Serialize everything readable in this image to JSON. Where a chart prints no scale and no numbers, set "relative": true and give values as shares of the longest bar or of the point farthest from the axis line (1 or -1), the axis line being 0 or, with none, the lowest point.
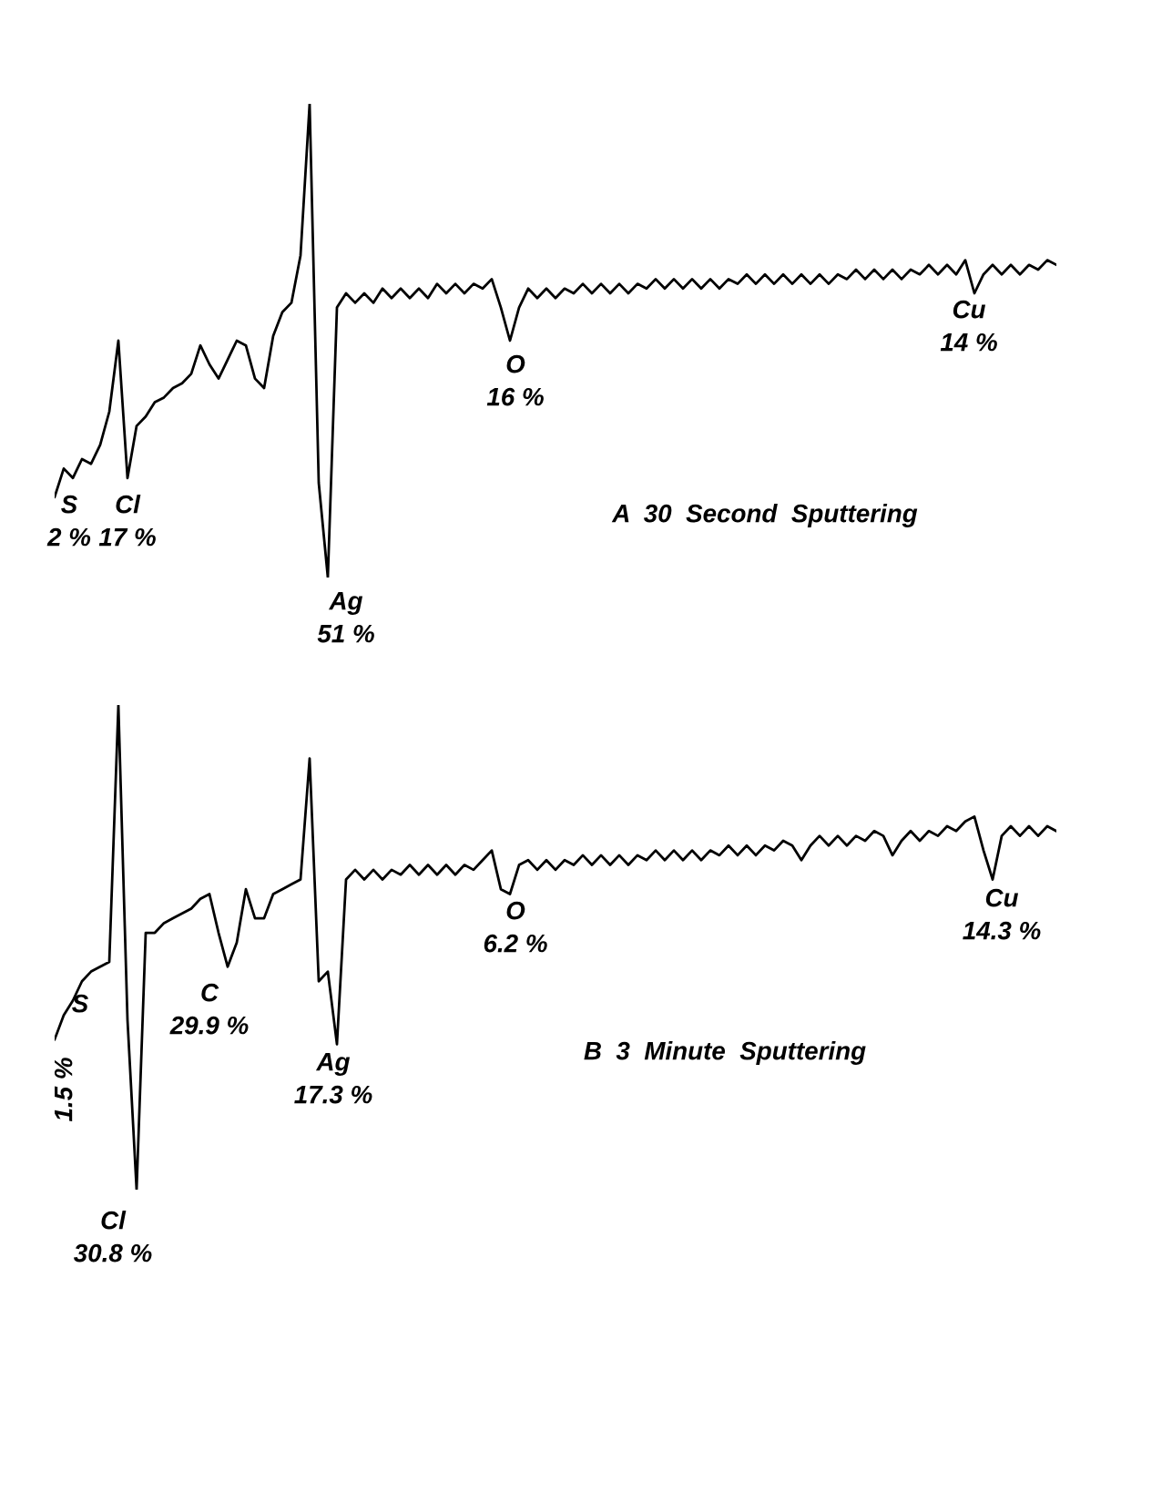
{
  "chart_data": [
    {
      "type": "line",
      "relative": true,
      "categories": [
        null,
        null,
        null,
        null,
        null,
        null,
        null,
        null,
        null,
        null,
        null,
        null,
        null,
        null,
        null,
        null,
        null,
        null,
        null,
        null,
        null,
        null,
        null,
        null,
        null,
        null,
        null,
        null,
        null,
        null,
        null,
        null,
        null,
        null,
        null,
        null,
        null,
        null,
        null,
        null,
        null,
        null,
        null,
        null,
        null,
        null,
        null,
        null,
        null,
        null,
        null,
        null,
        null,
        null,
        null,
        null,
        null,
        null,
        null,
        null,
        null,
        null,
        null,
        null,
        null,
        null,
        null,
        null,
        null,
        null,
        null,
        null,
        null,
        null,
        null,
        null,
        null,
        null,
        null,
        null,
        null,
        null,
        null,
        null,
        null,
        null,
        null,
        null,
        null,
        null,
        null,
        null,
        null,
        null,
        null,
        null,
        null,
        null,
        null,
        null,
        null,
        null,
        null,
        null,
        null,
        null,
        null,
        null,
        null,
        null,
        null
      ],
      "series": [
        {
          "color": "#000000",
          "values": [
            0.17,
            0.23,
            0.21,
            0.25,
            0.24,
            0.28,
            0.35,
            0.5,
            0.21,
            0.32,
            0.34,
            0.37,
            0.38,
            0.4,
            0.41,
            0.43,
            0.49,
            0.45,
            0.42,
            0.46,
            0.5,
            0.49,
            0.42,
            0.4,
            0.51,
            0.56,
            0.58,
            0.68,
            1.0,
            0.2,
            0.0,
            0.57,
            0.6,
            0.58,
            0.6,
            0.58,
            0.61,
            0.59,
            0.61,
            0.59,
            0.61,
            0.59,
            0.62,
            0.6,
            0.62,
            0.6,
            0.62,
            0.61,
            0.63,
            0.57,
            0.5,
            0.57,
            0.61,
            0.59,
            0.61,
            0.59,
            0.61,
            0.6,
            0.62,
            0.6,
            0.62,
            0.6,
            0.62,
            0.6,
            0.62,
            0.61,
            0.63,
            0.61,
            0.63,
            0.61,
            0.63,
            0.61,
            0.63,
            0.61,
            0.63,
            0.62,
            0.64,
            0.62,
            0.64,
            0.62,
            0.64,
            0.62,
            0.64,
            0.62,
            0.64,
            0.62,
            0.64,
            0.63,
            0.65,
            0.63,
            0.65,
            0.63,
            0.65,
            0.63,
            0.65,
            0.64,
            0.66,
            0.64,
            0.66,
            0.64,
            0.67,
            0.6,
            0.64,
            0.66,
            0.64,
            0.66,
            0.64,
            0.66,
            0.65,
            0.67,
            0.66
          ]
        }
      ],
      "annotations": [
        "S\n2 %",
        "Cl\n17 %",
        "Ag\n51 %",
        "O\n16 %",
        "Cu\n14 %",
        "A  30  Second  Sputtering"
      ]
    },
    {
      "type": "line",
      "relative": true,
      "categories": [
        null,
        null,
        null,
        null,
        null,
        null,
        null,
        null,
        null,
        null,
        null,
        null,
        null,
        null,
        null,
        null,
        null,
        null,
        null,
        null,
        null,
        null,
        null,
        null,
        null,
        null,
        null,
        null,
        null,
        null,
        null,
        null,
        null,
        null,
        null,
        null,
        null,
        null,
        null,
        null,
        null,
        null,
        null,
        null,
        null,
        null,
        null,
        null,
        null,
        null,
        null,
        null,
        null,
        null,
        null,
        null,
        null,
        null,
        null,
        null,
        null,
        null,
        null,
        null,
        null,
        null,
        null,
        null,
        null,
        null,
        null,
        null,
        null,
        null,
        null,
        null,
        null,
        null,
        null,
        null,
        null,
        null,
        null,
        null,
        null,
        null,
        null,
        null,
        null,
        null,
        null,
        null,
        null,
        null,
        null,
        null,
        null,
        null,
        null,
        null,
        null,
        null,
        null,
        null,
        null,
        null,
        null,
        null,
        null,
        null,
        null
      ],
      "series": [
        {
          "color": "#000000",
          "values": [
            0.31,
            0.36,
            0.39,
            0.43,
            0.45,
            0.46,
            0.47,
            1.0,
            0.35,
            0.0,
            0.53,
            0.53,
            0.55,
            0.56,
            0.57,
            0.58,
            0.6,
            0.61,
            0.53,
            0.46,
            0.51,
            0.62,
            0.56,
            0.56,
            0.61,
            0.62,
            0.63,
            0.64,
            0.89,
            0.43,
            0.45,
            0.3,
            0.64,
            0.66,
            0.64,
            0.66,
            0.64,
            0.66,
            0.65,
            0.67,
            0.65,
            0.67,
            0.65,
            0.67,
            0.65,
            0.67,
            0.66,
            0.68,
            0.7,
            0.62,
            0.61,
            0.67,
            0.68,
            0.66,
            0.68,
            0.66,
            0.68,
            0.67,
            0.69,
            0.67,
            0.69,
            0.67,
            0.69,
            0.67,
            0.69,
            0.68,
            0.7,
            0.68,
            0.7,
            0.68,
            0.7,
            0.68,
            0.7,
            0.69,
            0.71,
            0.69,
            0.71,
            0.69,
            0.71,
            0.7,
            0.72,
            0.71,
            0.68,
            0.71,
            0.73,
            0.71,
            0.73,
            0.71,
            0.73,
            0.72,
            0.74,
            0.73,
            0.69,
            0.72,
            0.74,
            0.72,
            0.74,
            0.73,
            0.75,
            0.74,
            0.76,
            0.77,
            0.7,
            0.64,
            0.73,
            0.75,
            0.73,
            0.75,
            0.73,
            0.75,
            0.74
          ]
        }
      ],
      "annotations": [
        "S",
        "1.5 %",
        "Cl\n30.8 %",
        "C\n29.9 %",
        "Ag\n17.3 %",
        "O\n6.2 %",
        "Cu\n14.3 %",
        "B  3  Minute  Sputtering"
      ]
    }
  ]
}
